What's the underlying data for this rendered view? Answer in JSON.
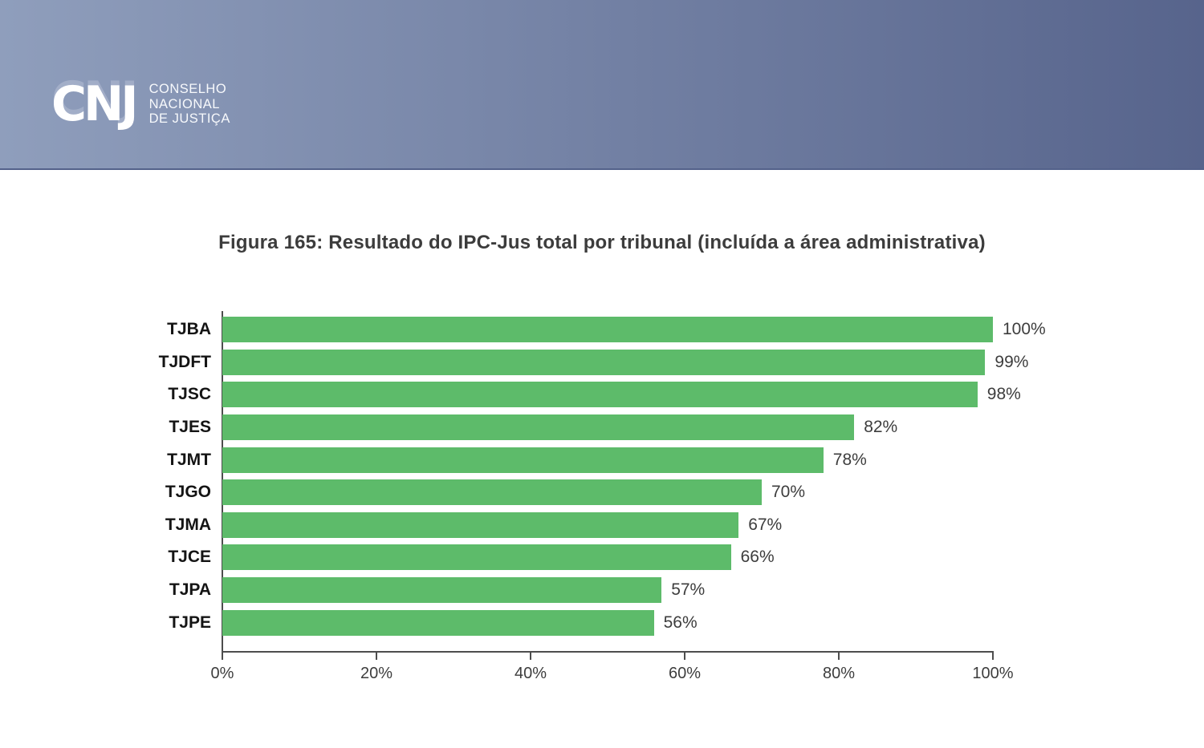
{
  "header": {
    "logo_wordmark": "CNJ",
    "org_lines": [
      "CONSELHO",
      "NACIONAL",
      "DE JUSTIÇA"
    ],
    "banner_gradient_left": "#8f9ebc",
    "banner_gradient_right": "#57648c"
  },
  "figure_title": "Figura 165: Resultado do IPC-Jus total por tribunal (incluída a área administrativa)",
  "chart_data": {
    "type": "bar",
    "orientation": "horizontal",
    "title": "Figura 165: Resultado do IPC-Jus total por tribunal (incluída a área administrativa)",
    "categories": [
      "TJBA",
      "TJDFT",
      "TJSC",
      "TJES",
      "TJMT",
      "TJGO",
      "TJMA",
      "TJCE",
      "TJPA",
      "TJPE"
    ],
    "values": [
      100,
      99,
      98,
      82,
      78,
      70,
      67,
      66,
      57,
      56
    ],
    "value_labels": [
      "100%",
      "99%",
      "98%",
      "82%",
      "78%",
      "70%",
      "67%",
      "66%",
      "57%",
      "56%"
    ],
    "xlabel": "",
    "ylabel": "",
    "xlim": [
      0,
      100
    ],
    "x_ticks": [
      {
        "value": 0,
        "label": "0%"
      },
      {
        "value": 20,
        "label": "20%"
      },
      {
        "value": 40,
        "label": "40%"
      },
      {
        "value": 60,
        "label": "60%"
      },
      {
        "value": 80,
        "label": "80%"
      },
      {
        "value": 100,
        "label": "100%"
      }
    ],
    "grid": false,
    "legend": false,
    "bar_color": "#5dbb6a",
    "axis_color": "#4d4d4d",
    "category_label_color": "#141414",
    "value_label_color": "#3d3d3d"
  }
}
